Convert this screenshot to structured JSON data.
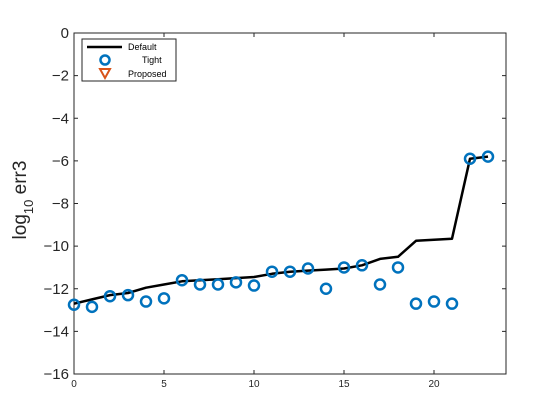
{
  "chart_data": {
    "type": "line",
    "title": "",
    "xlabel": "",
    "ylabel": "log10 err3",
    "ylabel_parts": {
      "main": "log",
      "sub": "10",
      "rest": " err3"
    },
    "xlim": [
      0,
      24
    ],
    "ylim": [
      -16,
      0
    ],
    "xticks": [
      0,
      5,
      10,
      15,
      20
    ],
    "yticks": [
      0,
      -2,
      -4,
      -6,
      -8,
      -10,
      -12,
      -14,
      -16
    ],
    "ytick_labels": [
      "0",
      "−2",
      "−4",
      "−6",
      "−8",
      "−10",
      "−12",
      "−14",
      "−16"
    ],
    "grid": false,
    "legend_position": "top-left",
    "series": [
      {
        "name": "Default",
        "style": "line",
        "color": "#000000",
        "x": [
          0,
          1,
          2,
          3,
          4,
          5,
          6,
          7,
          8,
          9,
          10,
          11,
          12,
          13,
          14,
          15,
          16,
          17,
          18,
          19,
          20,
          21,
          22,
          23
        ],
        "y": [
          -12.7,
          -12.5,
          -12.3,
          -12.2,
          -11.95,
          -11.8,
          -11.65,
          -11.6,
          -11.55,
          -11.5,
          -11.45,
          -11.3,
          -11.2,
          -11.15,
          -11.1,
          -11.05,
          -10.9,
          -10.6,
          -10.5,
          -9.75,
          -9.7,
          -9.65,
          -5.9,
          -5.8
        ]
      },
      {
        "name": "Tight",
        "style": "circle",
        "color": "#0072BD",
        "x": [
          0,
          1,
          2,
          3,
          4,
          5,
          6,
          7,
          8,
          9,
          10,
          11,
          12,
          13,
          14,
          15,
          16,
          17,
          18,
          19,
          20,
          21,
          22,
          23
        ],
        "y": [
          -12.75,
          -12.85,
          -12.35,
          -12.3,
          -12.6,
          -12.45,
          -11.6,
          -11.8,
          -11.8,
          -11.7,
          -11.85,
          -11.2,
          -11.2,
          -11.05,
          -12.0,
          -11.0,
          -10.9,
          -11.8,
          -11.0,
          -12.7,
          -12.6,
          -12.7,
          -5.9,
          -5.8
        ]
      },
      {
        "name": "Proposed",
        "style": "triangle-down",
        "color": "#D95319",
        "x": [],
        "y": []
      }
    ]
  }
}
